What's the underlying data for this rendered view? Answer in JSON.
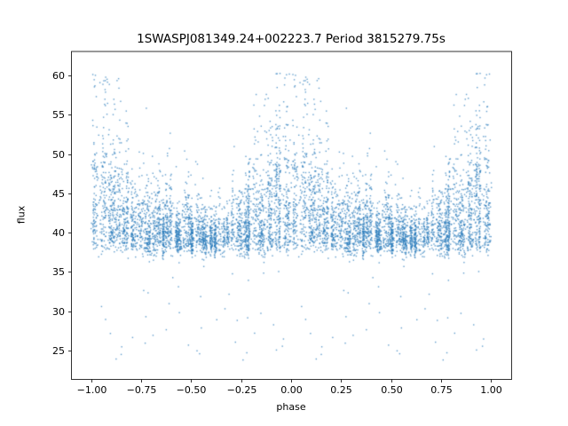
{
  "chart_data": {
    "type": "scatter",
    "title": "1SWASPJ081349.24+002223.7 Period 3815279.75s",
    "xlabel": "phase",
    "ylabel": "flux",
    "legend": "none",
    "grid": false,
    "xlim": [
      -1.1,
      1.1
    ],
    "ylim": [
      21.4,
      63.1
    ],
    "xticks": [
      {
        "value": -1.0,
        "label": "−1.00"
      },
      {
        "value": -0.75,
        "label": "−0.75"
      },
      {
        "value": -0.5,
        "label": "−0.50"
      },
      {
        "value": -0.25,
        "label": "−0.25"
      },
      {
        "value": 0.0,
        "label": "0.00"
      },
      {
        "value": 0.25,
        "label": "0.25"
      },
      {
        "value": 0.5,
        "label": "0.50"
      },
      {
        "value": 0.75,
        "label": "0.75"
      },
      {
        "value": 1.0,
        "label": "1.00"
      }
    ],
    "yticks": [
      {
        "value": 25,
        "label": "25"
      },
      {
        "value": 30,
        "label": "30"
      },
      {
        "value": 35,
        "label": "35"
      },
      {
        "value": 40,
        "label": "40"
      },
      {
        "value": 45,
        "label": "45"
      },
      {
        "value": 50,
        "label": "50"
      },
      {
        "value": 55,
        "label": "55"
      },
      {
        "value": 60,
        "label": "60"
      }
    ],
    "marker_color": "#2e7ebc",
    "marker_alpha": 0.75,
    "marker_size_px": 1.4,
    "n_points_approx": 6800,
    "phase_range_plotted": [
      -1.0,
      1.0
    ],
    "duplicated_period": true,
    "profile": {
      "description": "Phase-folded SuperWASP light curve; dense flux floor near 38 with phase-dependent upward excursions, peaks near phase 0.0-0.1 and 0.8-0.95 reaching ~55-60, quiet troughs near phase 0.3-0.65 around 38-46, sparse low outliers down to ~24.",
      "flux_floor": 38.0,
      "noise_sigma": 0.7,
      "max_flux": 60.5,
      "low_outlier_range": [
        23.8,
        36.5
      ],
      "phase_knots": [
        0.0,
        0.05,
        0.1,
        0.15,
        0.2,
        0.25,
        0.3,
        0.35,
        0.4,
        0.45,
        0.5,
        0.55,
        0.6,
        0.65,
        0.7,
        0.75,
        0.8,
        0.85,
        0.9,
        0.95,
        1.0
      ],
      "amp_knots": [
        7.5,
        7.5,
        8.0,
        5.5,
        5.0,
        3.6,
        3.2,
        3.2,
        3.6,
        3.2,
        3.2,
        2.4,
        2.4,
        2.8,
        3.6,
        5.2,
        5.2,
        6.0,
        6.4,
        6.8,
        7.5
      ]
    },
    "clusters": {
      "count_per_period": 46,
      "points_min": 40,
      "points_max": 105,
      "width_min": 0.003,
      "width_max": 0.011,
      "low_outliers": 42,
      "sparse_singles": 260
    }
  }
}
